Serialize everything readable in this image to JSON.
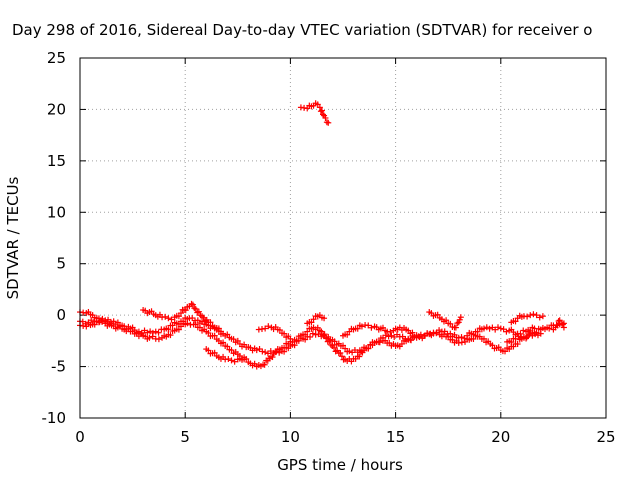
{
  "chart_data": {
    "type": "scatter",
    "title": "Day 298 of 2016, Sidereal Day-to-day VTEC variation (SDTVAR) for receiver o",
    "xlabel": "GPS time / hours",
    "ylabel": "SDTVAR / TECUs",
    "xlim": [
      0,
      25
    ],
    "ylim": [
      -10,
      25
    ],
    "xticks": [
      0,
      5,
      10,
      15,
      20,
      25
    ],
    "yticks": [
      -10,
      -5,
      0,
      5,
      10,
      15,
      20,
      25
    ],
    "grid": true,
    "marker": "+",
    "color": "#ff0000",
    "series": [
      {
        "points": [
          [
            0,
            0.3
          ],
          [
            0.3,
            0.2
          ],
          [
            0.6,
            0
          ],
          [
            0.8,
            -0.3
          ],
          [
            1,
            -0.5
          ],
          [
            1.2,
            -0.6
          ],
          [
            1.5,
            -0.8
          ]
        ]
      },
      {
        "points": [
          [
            0,
            -1
          ],
          [
            0.3,
            -1.1
          ],
          [
            0.6,
            -0.9
          ],
          [
            0.9,
            -0.7
          ],
          [
            1.2,
            -0.8
          ],
          [
            1.5,
            -1
          ],
          [
            1.8,
            -1.2
          ],
          [
            2.1,
            -1.4
          ],
          [
            2.4,
            -1.6
          ],
          [
            2.7,
            -1.8
          ],
          [
            3,
            -2
          ],
          [
            3.3,
            -2.2
          ],
          [
            3.6,
            -2.3
          ],
          [
            3.9,
            -2.2
          ],
          [
            4.2,
            -1.9
          ],
          [
            4.5,
            -1.5
          ],
          [
            4.8,
            -1.1
          ],
          [
            5.1,
            -0.8
          ],
          [
            5.4,
            -0.9
          ],
          [
            5.7,
            -1.2
          ],
          [
            6,
            -1.6
          ],
          [
            6.3,
            -2
          ],
          [
            6.6,
            -2.5
          ],
          [
            6.9,
            -3
          ],
          [
            7.2,
            -3.4
          ],
          [
            7.5,
            -3.8
          ],
          [
            7.8,
            -4.3
          ],
          [
            8.1,
            -4.7
          ],
          [
            8.4,
            -5
          ],
          [
            8.7,
            -4.8
          ],
          [
            9,
            -4.2
          ],
          [
            9.3,
            -3.6
          ],
          [
            9.6,
            -3.2
          ],
          [
            9.9,
            -2.8
          ],
          [
            10.2,
            -2.4
          ],
          [
            10.5,
            -2
          ],
          [
            10.8,
            -1.6
          ],
          [
            11.1,
            -1.2
          ],
          [
            11.4,
            -1.5
          ],
          [
            11.7,
            -2.2
          ],
          [
            12,
            -3
          ],
          [
            12.3,
            -3.7
          ],
          [
            12.6,
            -4.3
          ],
          [
            12.9,
            -4.5
          ],
          [
            13.2,
            -4
          ],
          [
            13.5,
            -3.4
          ],
          [
            13.8,
            -2.9
          ],
          [
            14.1,
            -2.6
          ],
          [
            14.4,
            -2.5
          ],
          [
            14.7,
            -2.7
          ],
          [
            15,
            -3
          ],
          [
            15.3,
            -2.8
          ],
          [
            15.6,
            -2.4
          ],
          [
            15.9,
            -2.1
          ],
          [
            16.2,
            -1.9
          ],
          [
            16.5,
            -1.8
          ],
          [
            16.8,
            -1.8
          ],
          [
            17.1,
            -1.9
          ],
          [
            17.4,
            -2.1
          ],
          [
            17.7,
            -2.4
          ],
          [
            18,
            -2.7
          ],
          [
            18.3,
            -2.6
          ],
          [
            18.6,
            -2.3
          ],
          [
            18.9,
            -2.1
          ],
          [
            19.2,
            -2.3
          ],
          [
            19.5,
            -2.8
          ],
          [
            19.8,
            -3.2
          ],
          [
            20.1,
            -3.5
          ],
          [
            20.4,
            -3.3
          ],
          [
            20.7,
            -2.8
          ],
          [
            21,
            -2.3
          ],
          [
            21.3,
            -2
          ],
          [
            21.6,
            -1.7
          ],
          [
            21.9,
            -1.4
          ],
          [
            22.2,
            -1.2
          ],
          [
            22.5,
            -1
          ],
          [
            22.8,
            -0.9
          ],
          [
            23,
            -0.8
          ]
        ]
      },
      {
        "points": [
          [
            0,
            -0.6
          ],
          [
            0.4,
            -0.7
          ],
          [
            0.8,
            -0.6
          ],
          [
            1.2,
            -0.5
          ],
          [
            1.6,
            -0.6
          ],
          [
            2,
            -1
          ],
          [
            2.4,
            -1.3
          ],
          [
            2.8,
            -1.6
          ],
          [
            3.2,
            -1.7
          ],
          [
            3.6,
            -1.6
          ],
          [
            4,
            -1.4
          ],
          [
            4.4,
            -1
          ],
          [
            4.8,
            -0.6
          ],
          [
            5.2,
            -0.3
          ],
          [
            5.6,
            -0.5
          ],
          [
            6,
            -0.9
          ],
          [
            6.4,
            -1.3
          ],
          [
            6.8,
            -1.8
          ],
          [
            7.2,
            -2.3
          ],
          [
            7.6,
            -2.8
          ],
          [
            8,
            -3.1
          ],
          [
            8.4,
            -3.4
          ],
          [
            8.8,
            -3.6
          ],
          [
            9.2,
            -3.7
          ],
          [
            9.6,
            -3.5
          ],
          [
            10,
            -3
          ],
          [
            10.4,
            -2.5
          ],
          [
            10.8,
            -2.1
          ],
          [
            11.2,
            -1.9
          ],
          [
            11.6,
            -2
          ],
          [
            12,
            -2.4
          ],
          [
            12.4,
            -3
          ],
          [
            12.8,
            -3.5
          ],
          [
            13.2,
            -3.6
          ],
          [
            13.6,
            -3.2
          ],
          [
            14,
            -2.7
          ],
          [
            14.4,
            -2.2
          ],
          [
            14.8,
            -2
          ],
          [
            15.2,
            -2.1
          ],
          [
            15.6,
            -2.3
          ],
          [
            16,
            -2.2
          ],
          [
            16.4,
            -2
          ],
          [
            16.8,
            -1.7
          ],
          [
            17.2,
            -1.6
          ],
          [
            17.6,
            -1.8
          ],
          [
            18,
            -2.2
          ],
          [
            18.4,
            -2
          ],
          [
            18.8,
            -1.6
          ],
          [
            19.2,
            -1.3
          ],
          [
            19.6,
            -1.2
          ],
          [
            20,
            -1.3
          ],
          [
            20.4,
            -1.5
          ],
          [
            20.8,
            -1.8
          ],
          [
            21.2,
            -1.6
          ],
          [
            21.6,
            -1.3
          ]
        ]
      },
      {
        "points": [
          [
            3,
            0.5
          ],
          [
            3.3,
            0.3
          ],
          [
            3.6,
            0
          ],
          [
            3.9,
            -0.2
          ],
          [
            4.2,
            -0.3
          ],
          [
            4.5,
            -0.2
          ],
          [
            4.8,
            0.2
          ],
          [
            5.1,
            0.8
          ],
          [
            5.3,
            1.1
          ],
          [
            5.5,
            0.6
          ],
          [
            5.8,
            -0.1
          ],
          [
            6.1,
            -0.7
          ],
          [
            6.4,
            -1.2
          ],
          [
            6.7,
            -1.6
          ]
        ]
      },
      {
        "points": [
          [
            6,
            -3.3
          ],
          [
            6.3,
            -3.7
          ],
          [
            6.6,
            -4.1
          ],
          [
            6.9,
            -4.3
          ],
          [
            7.2,
            -4.4
          ],
          [
            7.5,
            -4.3
          ],
          [
            7.8,
            -4.1
          ]
        ]
      },
      {
        "points": [
          [
            8.5,
            -1.4
          ],
          [
            8.8,
            -1.3
          ],
          [
            9.1,
            -1.2
          ],
          [
            9.4,
            -1.4
          ],
          [
            9.7,
            -1.8
          ],
          [
            10,
            -2.3
          ]
        ]
      },
      {
        "points": [
          [
            10.5,
            20.2
          ],
          [
            10.8,
            20.1
          ],
          [
            11,
            20.3
          ],
          [
            11.2,
            20.6
          ],
          [
            11.4,
            20.2
          ],
          [
            11.6,
            19.4
          ],
          [
            11.8,
            18.7
          ]
        ]
      },
      {
        "points": [
          [
            10.8,
            -0.8
          ],
          [
            11.1,
            -0.4
          ],
          [
            11.4,
            0
          ],
          [
            11.6,
            -0.3
          ]
        ]
      },
      {
        "points": [
          [
            12.5,
            -2
          ],
          [
            12.8,
            -1.6
          ],
          [
            13.1,
            -1.3
          ],
          [
            13.4,
            -1.1
          ],
          [
            13.7,
            -1
          ],
          [
            14,
            -1.1
          ],
          [
            14.3,
            -1.3
          ],
          [
            14.6,
            -1.6
          ],
          [
            14.9,
            -1.5
          ],
          [
            15.2,
            -1.2
          ],
          [
            15.5,
            -1.4
          ],
          [
            15.8,
            -1.7
          ]
        ]
      },
      {
        "points": [
          [
            16.6,
            0.3
          ],
          [
            16.9,
            0
          ],
          [
            17.2,
            -0.4
          ],
          [
            17.5,
            -0.8
          ],
          [
            17.8,
            -1.2
          ],
          [
            18,
            -0.7
          ],
          [
            18.1,
            -0.2
          ]
        ]
      },
      {
        "points": [
          [
            20.5,
            -0.7
          ],
          [
            20.8,
            -0.3
          ],
          [
            21.1,
            -0.1
          ],
          [
            21.4,
            0
          ],
          [
            21.7,
            0
          ],
          [
            22,
            -0.1
          ]
        ]
      },
      {
        "points": [
          [
            20.3,
            -2.6
          ],
          [
            20.7,
            -2.3
          ],
          [
            21.1,
            -2.1
          ],
          [
            21.5,
            -2
          ],
          [
            21.9,
            -1.8
          ]
        ]
      },
      {
        "points": [
          [
            22.5,
            -1.4
          ],
          [
            22.7,
            -1
          ],
          [
            22.8,
            -0.5
          ],
          [
            22.9,
            -0.8
          ],
          [
            23,
            -1.2
          ]
        ]
      }
    ]
  }
}
